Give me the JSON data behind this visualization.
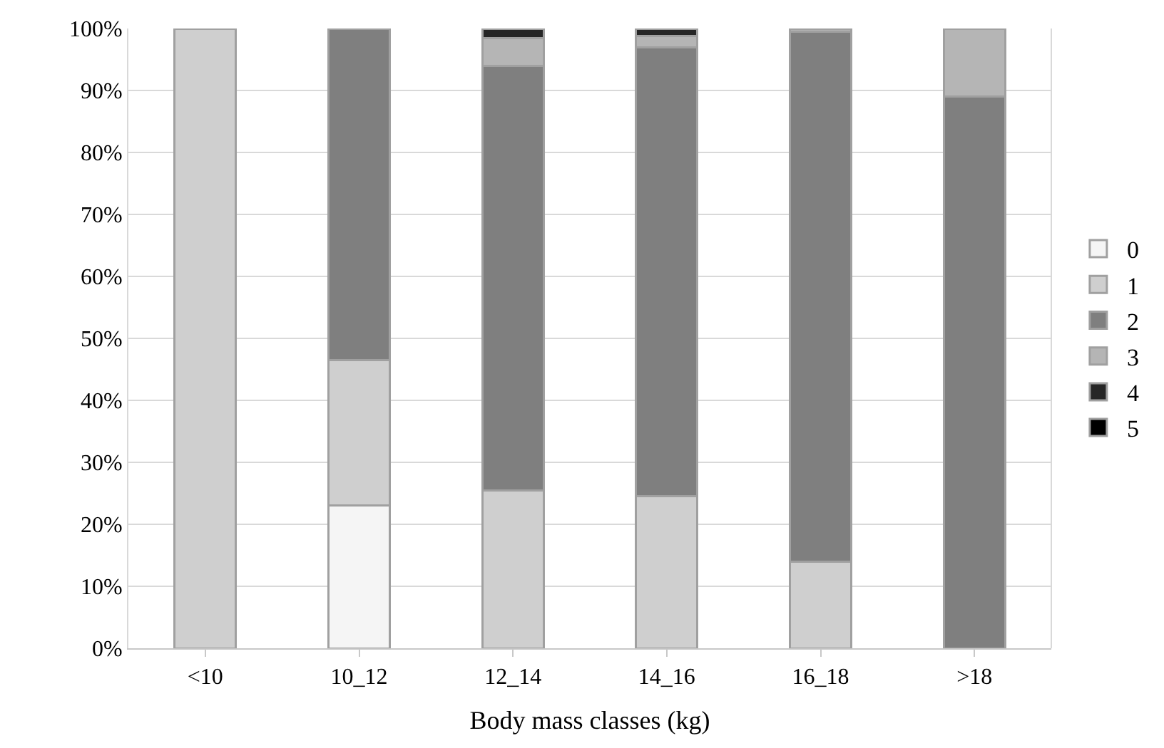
{
  "chart_data": {
    "type": "bar",
    "stacked": true,
    "xlabel": "Body mass classes (kg)",
    "categories": [
      "<10",
      "10_12",
      "12_14",
      "14_16",
      "16_18",
      ">18"
    ],
    "series": [
      {
        "name": "0",
        "color": "#f5f5f5",
        "values": [
          null,
          23,
          null,
          null,
          null,
          null
        ]
      },
      {
        "name": "1",
        "color": "#cfcfcf",
        "values": [
          100,
          23.5,
          25.5,
          24.5,
          14,
          null
        ]
      },
      {
        "name": "2",
        "color": "#7f7f7f",
        "values": [
          null,
          53.5,
          68.5,
          72.5,
          85.5,
          89
        ]
      },
      {
        "name": "3",
        "color": "#b5b5b5",
        "values": [
          null,
          null,
          4.5,
          1.8,
          0.5,
          11
        ]
      },
      {
        "name": "4",
        "color": "#262626",
        "values": [
          null,
          null,
          1.5,
          1.2,
          null,
          null
        ]
      },
      {
        "name": "5",
        "color": "#000000",
        "values": [
          null,
          null,
          null,
          null,
          null,
          null
        ]
      }
    ],
    "ylim": [
      0,
      100
    ],
    "yticks": [
      {
        "value": 0,
        "label": "0%"
      },
      {
        "value": 10,
        "label": "10%"
      },
      {
        "value": 20,
        "label": "20%"
      },
      {
        "value": 30,
        "label": "30%"
      },
      {
        "value": 40,
        "label": "40%"
      },
      {
        "value": 50,
        "label": "50%"
      },
      {
        "value": 60,
        "label": "60%"
      },
      {
        "value": 70,
        "label": "70%"
      },
      {
        "value": 80,
        "label": "80%"
      },
      {
        "value": 90,
        "label": "90%"
      },
      {
        "value": 100,
        "label": "100%"
      }
    ],
    "grid": "y",
    "legend": "right"
  }
}
